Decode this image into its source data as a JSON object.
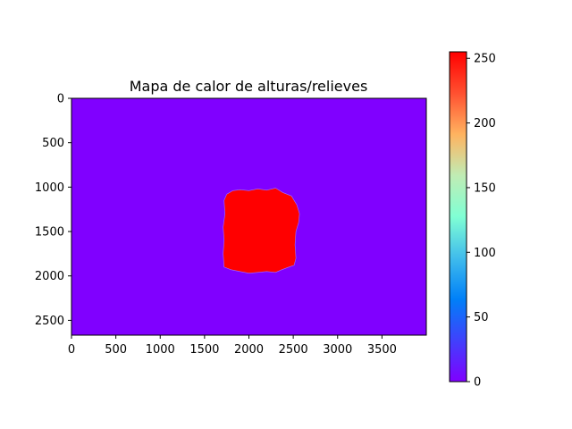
{
  "chart_data": [
    {
      "type": "heatmap",
      "title": "Mapa de calor de alturas/relieves",
      "xlabel": "",
      "ylabel": "",
      "colormap": "rainbow",
      "image_size": [
        4000,
        2667
      ],
      "xlim": [
        0,
        4000
      ],
      "ylim": [
        2667,
        0
      ],
      "xticks": [
        0,
        500,
        1000,
        1500,
        2000,
        2500,
        3000,
        3500
      ],
      "yticks": [
        0,
        500,
        1000,
        1500,
        2000,
        2500
      ],
      "background_value": 0,
      "background_color": "#8000ff",
      "regions": [
        {
          "name": "",
          "value": 255,
          "color": "#ff0000",
          "outline_points": [
            [
              1750,
              1080
            ],
            [
              1820,
              1040
            ],
            [
              1900,
              1030
            ],
            [
              2000,
              1040
            ],
            [
              2100,
              1020
            ],
            [
              2200,
              1035
            ],
            [
              2300,
              1010
            ],
            [
              2380,
              1060
            ],
            [
              2480,
              1100
            ],
            [
              2540,
              1200
            ],
            [
              2570,
              1300
            ],
            [
              2560,
              1400
            ],
            [
              2530,
              1500
            ],
            [
              2520,
              1650
            ],
            [
              2530,
              1800
            ],
            [
              2510,
              1880
            ],
            [
              2450,
              1900
            ],
            [
              2370,
              1930
            ],
            [
              2300,
              1960
            ],
            [
              2200,
              1950
            ],
            [
              2100,
              1960
            ],
            [
              2000,
              1970
            ],
            [
              1900,
              1950
            ],
            [
              1800,
              1930
            ],
            [
              1720,
              1900
            ],
            [
              1710,
              1750
            ],
            [
              1720,
              1600
            ],
            [
              1710,
              1450
            ],
            [
              1730,
              1300
            ],
            [
              1720,
              1150
            ]
          ]
        }
      ],
      "grid": false
    },
    {
      "type": "colorbar",
      "colormap": "rainbow",
      "range": [
        0,
        255
      ],
      "ticks": [
        0,
        50,
        100,
        150,
        200,
        250
      ]
    }
  ]
}
